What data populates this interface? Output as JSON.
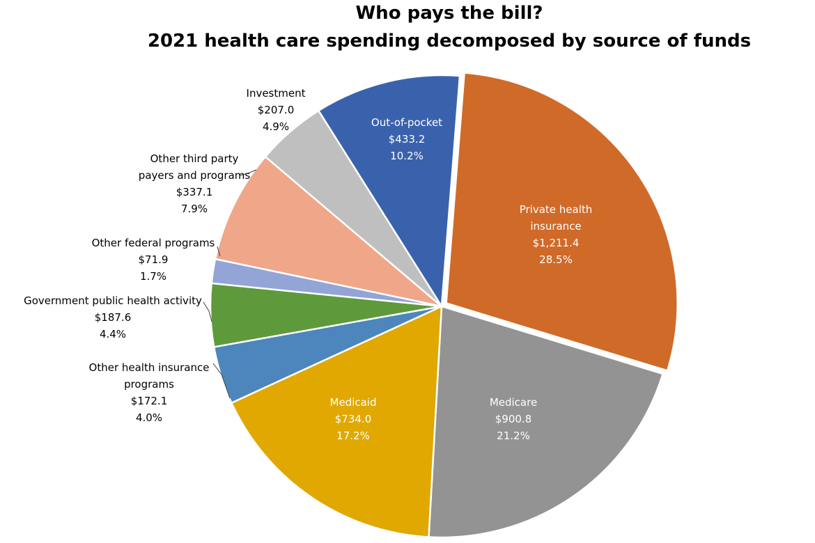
{
  "title_line1": "Who pays the bill?",
  "title_line2": "2021 health care spending decomposed by source of funds",
  "chart_data": {
    "type": "pie",
    "slices": [
      {
        "label_lines": [
          "Private health",
          "insurance"
        ],
        "value_text": "$1,211.4",
        "percent_text": "28.5%",
        "value": 1211.4,
        "percent": 28.5,
        "color": "#D06A29",
        "label_inside": true
      },
      {
        "label_lines": [
          "Medicare"
        ],
        "value_text": "$900.8",
        "percent_text": "21.2%",
        "value": 900.8,
        "percent": 21.2,
        "color": "#939393",
        "label_inside": true
      },
      {
        "label_lines": [
          "Medicaid"
        ],
        "value_text": "$734.0",
        "percent_text": "17.2%",
        "value": 734.0,
        "percent": 17.2,
        "color": "#E0A800",
        "label_inside": true
      },
      {
        "label_lines": [
          "Other health insurance",
          "programs"
        ],
        "value_text": "$172.1",
        "percent_text": "4.0%",
        "value": 172.1,
        "percent": 4.0,
        "color": "#4C86BC",
        "label_inside": false
      },
      {
        "label_lines": [
          "Government public health activity"
        ],
        "value_text": "$187.6",
        "percent_text": "4.4%",
        "value": 187.6,
        "percent": 4.4,
        "color": "#5E9A3C",
        "label_inside": false
      },
      {
        "label_lines": [
          "Other federal programs"
        ],
        "value_text": "$71.9",
        "percent_text": "1.7%",
        "value": 71.9,
        "percent": 1.7,
        "color": "#93A5D6",
        "label_inside": false
      },
      {
        "label_lines": [
          "Other third party",
          "payers and programs"
        ],
        "value_text": "$337.1",
        "percent_text": "7.9%",
        "value": 337.1,
        "percent": 7.9,
        "color": "#F0A689",
        "label_inside": false
      },
      {
        "label_lines": [
          "Investment"
        ],
        "value_text": "$207.0",
        "percent_text": "4.9%",
        "value": 207.0,
        "percent": 4.9,
        "color": "#BFBFBF",
        "label_inside": false
      },
      {
        "label_lines": [
          "Out-of-pocket"
        ],
        "value_text": "$433.2",
        "percent_text": "10.2%",
        "value": 433.2,
        "percent": 10.2,
        "color": "#3A62AC",
        "label_inside": true
      }
    ]
  }
}
